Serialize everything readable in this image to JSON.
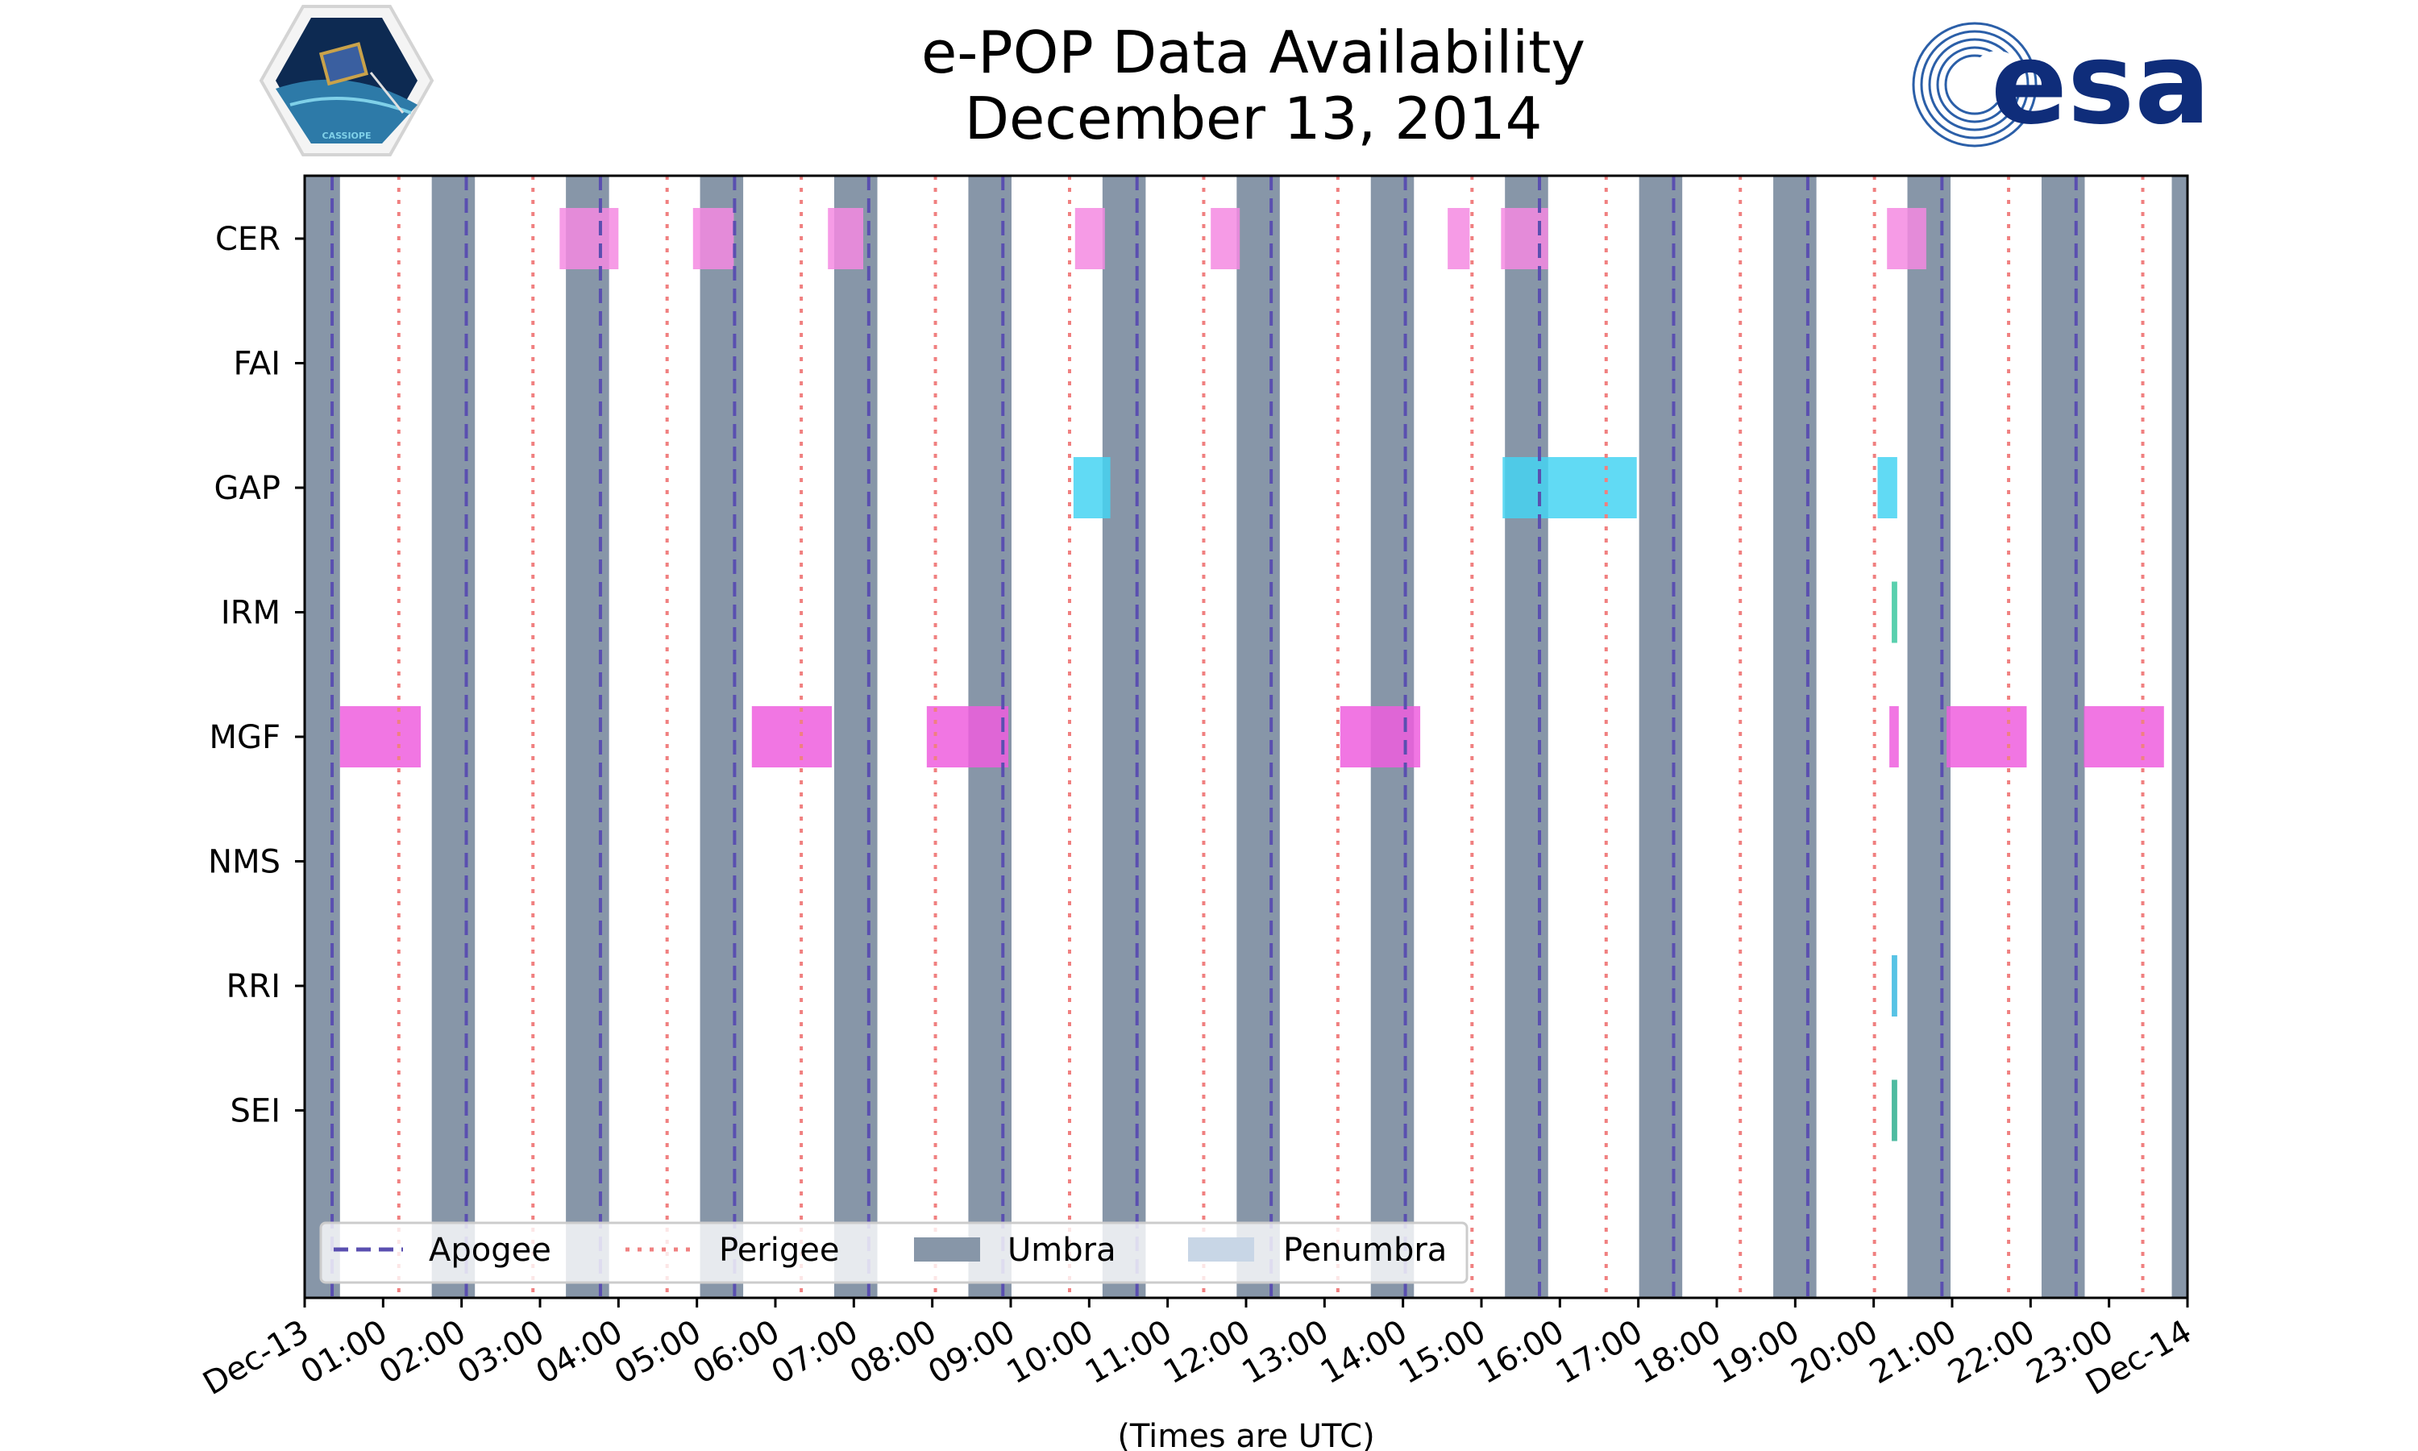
{
  "chart_data": {
    "type": "timeline",
    "title": [
      "e-POP Data Availability",
      "December 13, 2014"
    ],
    "xlabel": "(Times are UTC)",
    "xlim": [
      0,
      24
    ],
    "x_tick_labels": [
      "Dec-13",
      "01:00",
      "02:00",
      "03:00",
      "04:00",
      "05:00",
      "06:00",
      "07:00",
      "08:00",
      "09:00",
      "10:00",
      "11:00",
      "12:00",
      "13:00",
      "14:00",
      "15:00",
      "16:00",
      "17:00",
      "18:00",
      "19:00",
      "20:00",
      "21:00",
      "22:00",
      "23:00",
      "Dec-14"
    ],
    "instruments": [
      "CER",
      "FAI",
      "GAP",
      "IRM",
      "MGF",
      "NMS",
      "RRI",
      "SEI"
    ],
    "legend": {
      "apogee": "Apogee",
      "perigee": "Perigee",
      "umbra": "Umbra",
      "penumbra": "Penumbra"
    },
    "logos": {
      "left": "CASSIOPE",
      "right": "esa"
    },
    "colors": {
      "umbra": "#8796a8",
      "penumbra": "#c8d6e6",
      "apogee": "#5a4fb0",
      "perigee": "#f08080",
      "CER": "#f58ae2",
      "GAP": "#45d4f2",
      "IRM": "#3cc8a0",
      "MGF": "#ee5ede",
      "RRI": "#3ab8e0",
      "SEI": "#2faf8f"
    },
    "umbra_hours": [
      [
        0,
        0.45
      ],
      [
        1.62,
        2.17
      ],
      [
        3.33,
        3.88
      ],
      [
        5.04,
        5.59
      ],
      [
        6.75,
        7.3
      ],
      [
        8.46,
        9.01
      ],
      [
        10.17,
        10.72
      ],
      [
        11.88,
        12.43
      ],
      [
        13.59,
        14.14
      ],
      [
        15.3,
        15.85
      ],
      [
        17.01,
        17.56
      ],
      [
        18.72,
        19.27
      ],
      [
        20.43,
        20.98
      ],
      [
        22.14,
        22.69
      ],
      [
        23.8,
        24.0
      ]
    ],
    "apogee_hours": [
      0.35,
      2.06,
      3.77,
      5.48,
      7.19,
      8.9,
      10.61,
      12.32,
      14.03,
      15.74,
      17.45,
      19.16,
      20.87,
      22.58
    ],
    "perigee_hours": [
      1.2,
      2.91,
      4.62,
      6.33,
      8.04,
      9.75,
      11.46,
      13.17,
      14.88,
      16.59,
      18.3,
      20.01,
      21.72,
      23.43
    ],
    "data_segments": {
      "CER": [
        [
          3.25,
          4.0
        ],
        [
          4.95,
          5.47
        ],
        [
          6.67,
          7.12
        ],
        [
          9.82,
          10.2
        ],
        [
          11.55,
          11.92
        ],
        [
          14.57,
          14.85
        ],
        [
          15.25,
          15.85
        ],
        [
          20.17,
          20.67
        ]
      ],
      "GAP": [
        [
          9.8,
          10.27
        ],
        [
          15.27,
          16.98
        ],
        [
          20.05,
          20.3
        ]
      ],
      "IRM": [
        [
          20.23,
          20.3
        ]
      ],
      "MGF": [
        [
          0.45,
          1.48
        ],
        [
          5.7,
          6.72
        ],
        [
          7.93,
          8.97
        ],
        [
          13.2,
          14.22
        ],
        [
          20.2,
          20.32
        ],
        [
          20.93,
          21.95
        ],
        [
          22.68,
          23.7
        ]
      ],
      "RRI": [
        [
          20.23,
          20.3
        ]
      ],
      "SEI": [
        [
          20.23,
          20.3
        ]
      ]
    }
  }
}
